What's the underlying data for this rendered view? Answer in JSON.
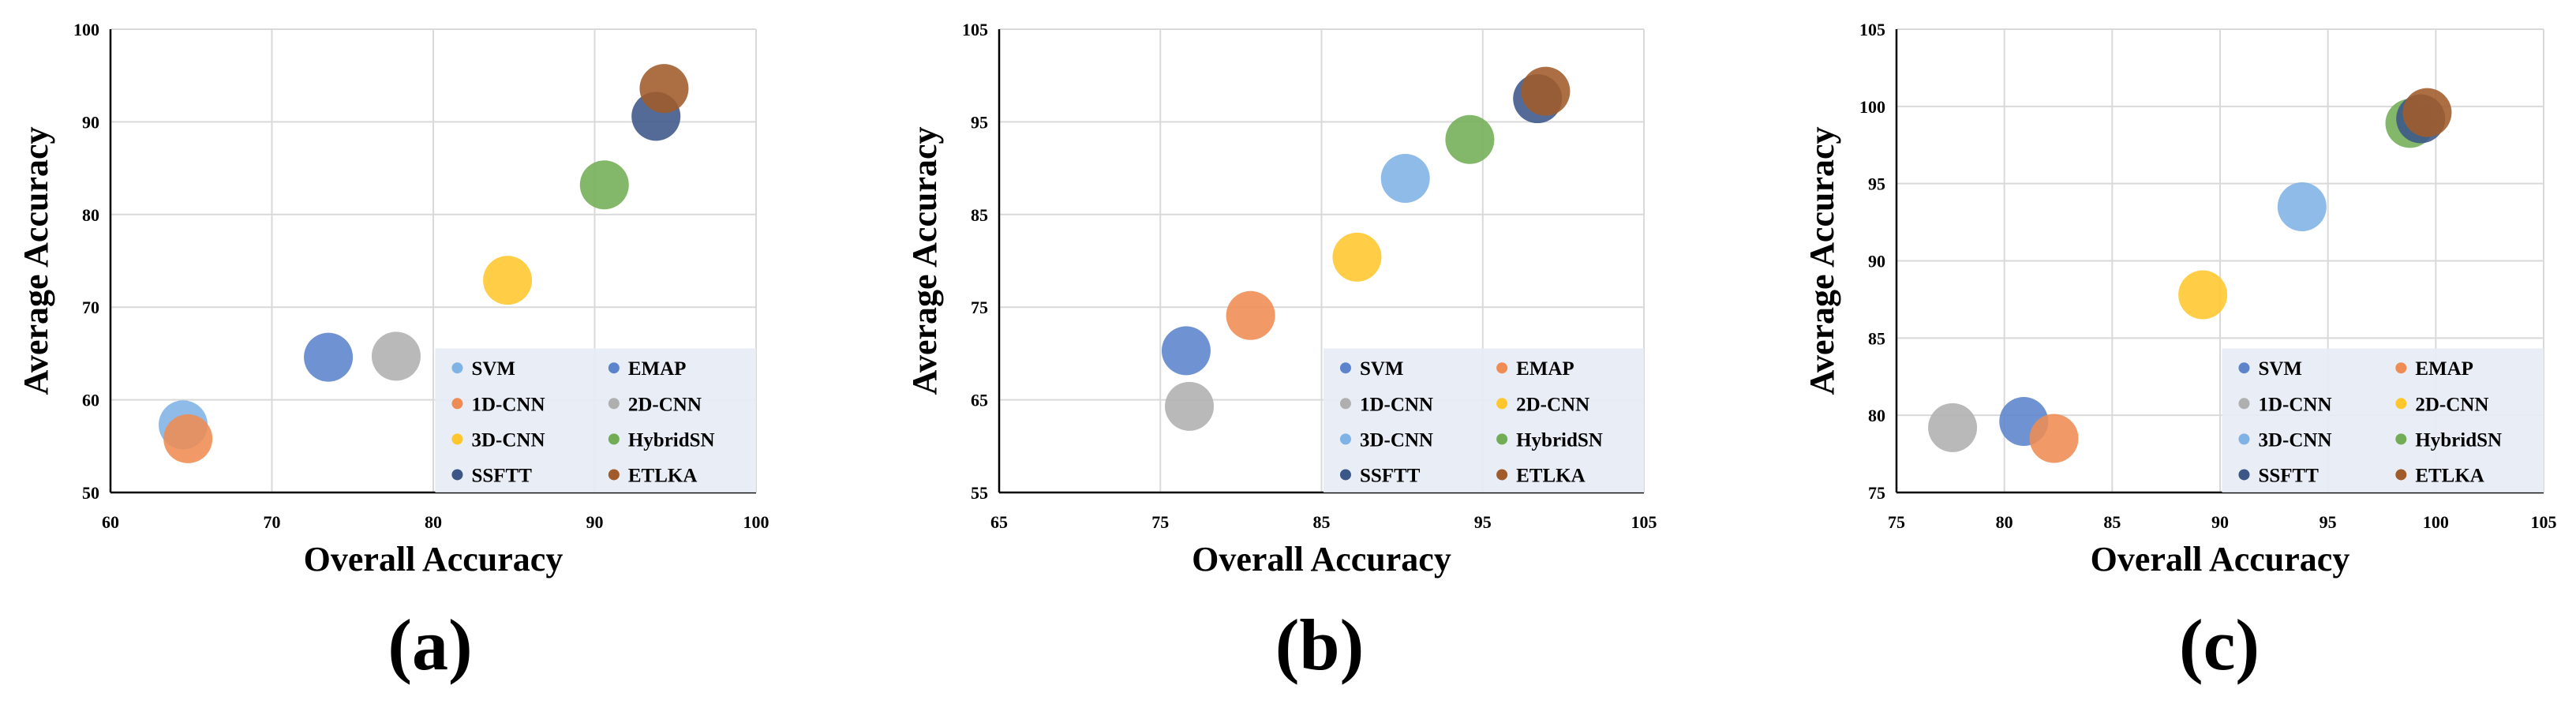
{
  "chart_data": [
    {
      "type": "scatter",
      "panel_label": "(a)",
      "xlabel": "Overall Accuracy",
      "ylabel": "Average Accuracy",
      "xlim": [
        60,
        100
      ],
      "ylim": [
        50,
        100
      ],
      "xticks": [
        60,
        70,
        80,
        90,
        100
      ],
      "yticks": [
        50,
        60,
        70,
        80,
        90,
        100
      ],
      "grid": true,
      "legend_position": "bottom-right",
      "series": [
        {
          "name": "SVM",
          "color": "#7fb2e5",
          "x": 64.5,
          "y": 57.3
        },
        {
          "name": "1D-CNN",
          "color": "#ef8c53",
          "x": 64.8,
          "y": 55.8
        },
        {
          "name": "EMAP",
          "color": "#5b84cc",
          "x": 73.5,
          "y": 64.6
        },
        {
          "name": "2D-CNN",
          "color": "#afafaf",
          "x": 77.7,
          "y": 64.7
        },
        {
          "name": "3D-CNN",
          "color": "#ffc72c",
          "x": 84.6,
          "y": 72.9
        },
        {
          "name": "HybridSN",
          "color": "#72ad55",
          "x": 90.6,
          "y": 83.2
        },
        {
          "name": "SSFTT",
          "color": "#3b5788",
          "x": 93.8,
          "y": 90.6
        },
        {
          "name": "ETLKA",
          "color": "#a15b2a",
          "x": 94.3,
          "y": 93.6
        }
      ]
    },
    {
      "type": "scatter",
      "panel_label": "(b)",
      "xlabel": "Overall Accuracy",
      "ylabel": "Average Accuracy",
      "xlim": [
        65,
        105
      ],
      "ylim": [
        55,
        105
      ],
      "xticks": [
        65,
        75,
        85,
        95,
        105
      ],
      "yticks": [
        55,
        65,
        75,
        85,
        95,
        105
      ],
      "grid": true,
      "legend_position": "bottom-right",
      "series": [
        {
          "name": "SVM",
          "color": "#5b84cc",
          "x": 76.6,
          "y": 70.3
        },
        {
          "name": "1D-CNN",
          "color": "#afafaf",
          "x": 76.8,
          "y": 64.3
        },
        {
          "name": "EMAP",
          "color": "#ef8c53",
          "x": 80.6,
          "y": 74.1
        },
        {
          "name": "2D-CNN",
          "color": "#ffc72c",
          "x": 87.2,
          "y": 80.4
        },
        {
          "name": "3D-CNN",
          "color": "#7fb2e5",
          "x": 90.2,
          "y": 88.9
        },
        {
          "name": "HybridSN",
          "color": "#72ad55",
          "x": 94.2,
          "y": 93.1
        },
        {
          "name": "SSFTT",
          "color": "#3b5788",
          "x": 98.4,
          "y": 97.5
        },
        {
          "name": "ETLKA",
          "color": "#a15b2a",
          "x": 98.9,
          "y": 98.3
        }
      ]
    },
    {
      "type": "scatter",
      "panel_label": "(c)",
      "xlabel": "Overall Accuracy",
      "ylabel": "Average Accuracy",
      "xlim": [
        75,
        105
      ],
      "ylim": [
        75,
        105
      ],
      "xticks": [
        75,
        80,
        85,
        90,
        95,
        100,
        105
      ],
      "yticks": [
        75,
        80,
        85,
        90,
        95,
        100,
        105
      ],
      "grid": true,
      "legend_position": "bottom-right",
      "series": [
        {
          "name": "SVM",
          "color": "#5b84cc",
          "x": 80.9,
          "y": 79.6
        },
        {
          "name": "1D-CNN",
          "color": "#afafaf",
          "x": 77.6,
          "y": 79.2
        },
        {
          "name": "EMAP",
          "color": "#ef8c53",
          "x": 82.3,
          "y": 78.5
        },
        {
          "name": "2D-CNN",
          "color": "#ffc72c",
          "x": 89.2,
          "y": 87.8
        },
        {
          "name": "3D-CNN",
          "color": "#7fb2e5",
          "x": 93.8,
          "y": 93.5
        },
        {
          "name": "HybridSN",
          "color": "#72ad55",
          "x": 98.8,
          "y": 98.9
        },
        {
          "name": "SSFTT",
          "color": "#3b5788",
          "x": 99.3,
          "y": 99.2
        },
        {
          "name": "ETLKA",
          "color": "#a15b2a",
          "x": 99.6,
          "y": 99.6
        }
      ]
    }
  ]
}
